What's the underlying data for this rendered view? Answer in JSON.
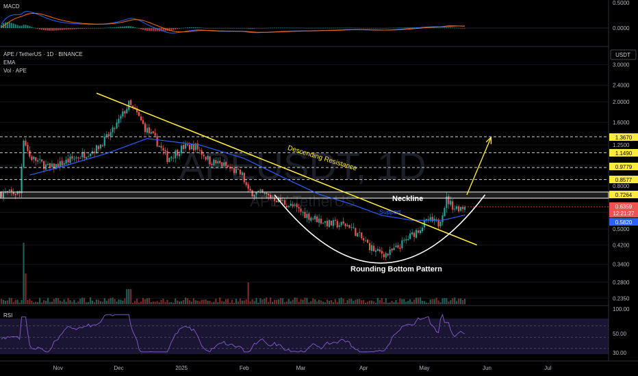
{
  "panels": {
    "macd": {
      "label": "MACD",
      "ticks": [
        "0.5000",
        "0.0000"
      ]
    },
    "main": {
      "pair": "APE / TetherUS · 1D · BINANCE",
      "ema_label": "EMA",
      "vol_label": "Vol · APE",
      "currency": "USDT",
      "watermark": "APEUSDT, 1D",
      "watermark_sub": "APE / TetherUS"
    },
    "rsi": {
      "label": "RSI",
      "ticks": [
        "100.00",
        "50.00",
        "30.00"
      ]
    }
  },
  "price_labels": {
    "r1": "1.3670",
    "r2": "1.1490",
    "r3": "0.9779",
    "r4": "0.8577",
    "neck": "0.7264",
    "last": "0.6359",
    "countdown": "12:21:27",
    "ema": "0.5820"
  },
  "annotations": {
    "descending": "Descending Resistance",
    "neckline": "Neckline",
    "support": "Support",
    "rounding": "Rounding Bottom Pattern"
  },
  "time_axis": [
    "Nov",
    "Dec",
    "2025",
    "Feb",
    "Mar",
    "Apr",
    "May",
    "Jun",
    "Jul"
  ],
  "colors": {
    "bg": "#000000",
    "up": "#26a69a",
    "down": "#ef5350",
    "ema": "#2962ff",
    "resistance": "#ffeb3b",
    "neckline": "#ffffff",
    "rsi": "#7e57c2",
    "macd": "#2962ff",
    "signal": "#ff6d00"
  },
  "chart_data": {
    "type": "candlestick",
    "title": "APE / TetherUS · 1D · BINANCE",
    "y_scale": "log",
    "ylim": [
      0.2,
      3.0
    ],
    "y_ticks": [
      3.0,
      2.4,
      2.0,
      1.6,
      1.25,
      1.0,
      0.8,
      0.6,
      0.5,
      0.42,
      0.34,
      0.28,
      0.235
    ],
    "x_start": "2024-10-04",
    "x_end": "2025-07-28",
    "keypoints": [
      [
        "2024-10-04",
        0.74
      ],
      [
        "2024-10-13",
        0.74
      ],
      [
        "2024-10-15",
        1.35
      ],
      [
        "2024-10-18",
        1.1
      ],
      [
        "2024-10-28",
        0.97
      ],
      [
        "2024-11-09",
        1.08
      ],
      [
        "2024-11-20",
        1.2
      ],
      [
        "2024-11-28",
        1.45
      ],
      [
        "2024-12-06",
        1.95
      ],
      [
        "2024-12-10",
        1.75
      ],
      [
        "2024-12-14",
        1.5
      ],
      [
        "2024-12-19",
        1.33
      ],
      [
        "2024-12-25",
        1.08
      ],
      [
        "2025-01-02",
        1.22
      ],
      [
        "2025-01-08",
        1.23
      ],
      [
        "2025-01-15",
        1.05
      ],
      [
        "2025-01-22",
        1.0
      ],
      [
        "2025-01-31",
        0.9
      ],
      [
        "2025-02-03",
        0.75
      ],
      [
        "2025-02-08",
        0.74
      ],
      [
        "2025-02-16",
        0.7
      ],
      [
        "2025-02-26",
        0.63
      ],
      [
        "2025-03-04",
        0.58
      ],
      [
        "2025-03-15",
        0.53
      ],
      [
        "2025-03-25",
        0.52
      ],
      [
        "2025-03-31",
        0.45
      ],
      [
        "2025-04-07",
        0.39
      ],
      [
        "2025-04-13",
        0.38
      ],
      [
        "2025-04-18",
        0.41
      ],
      [
        "2025-04-25",
        0.47
      ],
      [
        "2025-05-03",
        0.55
      ],
      [
        "2025-05-08",
        0.53
      ],
      [
        "2025-05-12",
        0.69
      ],
      [
        "2025-05-16",
        0.63
      ],
      [
        "2025-05-21",
        0.6359
      ]
    ],
    "ema": [
      [
        "2024-10-18",
        0.9
      ],
      [
        "2024-11-05",
        1.0
      ],
      [
        "2024-11-25",
        1.14
      ],
      [
        "2024-12-15",
        1.34
      ],
      [
        "2025-01-10",
        1.25
      ],
      [
        "2025-02-01",
        1.08
      ],
      [
        "2025-02-20",
        0.88
      ],
      [
        "2025-03-10",
        0.73
      ],
      [
        "2025-03-25",
        0.66
      ],
      [
        "2025-04-10",
        0.58
      ],
      [
        "2025-04-25",
        0.55
      ],
      [
        "2025-05-10",
        0.55
      ],
      [
        "2025-05-21",
        0.582
      ]
    ],
    "resistance_line": [
      [
        "2024-11-20",
        2.2
      ],
      [
        "2025-05-27",
        0.42
      ]
    ],
    "neckline": 0.7264,
    "horizontal_levels": [
      1.367,
      1.149,
      0.9779,
      0.8577
    ],
    "target_arrow": [
      [
        "2025-05-22",
        0.726
      ],
      [
        "2025-06-03",
        1.36
      ]
    ],
    "rounding_bottom": {
      "from": [
        "2025-02-16",
        0.7264
      ],
      "low": [
        "2025-04-10",
        0.345
      ],
      "to": [
        "2025-05-31",
        0.7264
      ]
    },
    "series": [
      {
        "name": "EMA",
        "last": 0.582
      },
      {
        "name": "RSI",
        "range": [
          20,
          100
        ]
      },
      {
        "name": "MACD",
        "range": [
          -0.3,
          0.5
        ]
      }
    ]
  }
}
